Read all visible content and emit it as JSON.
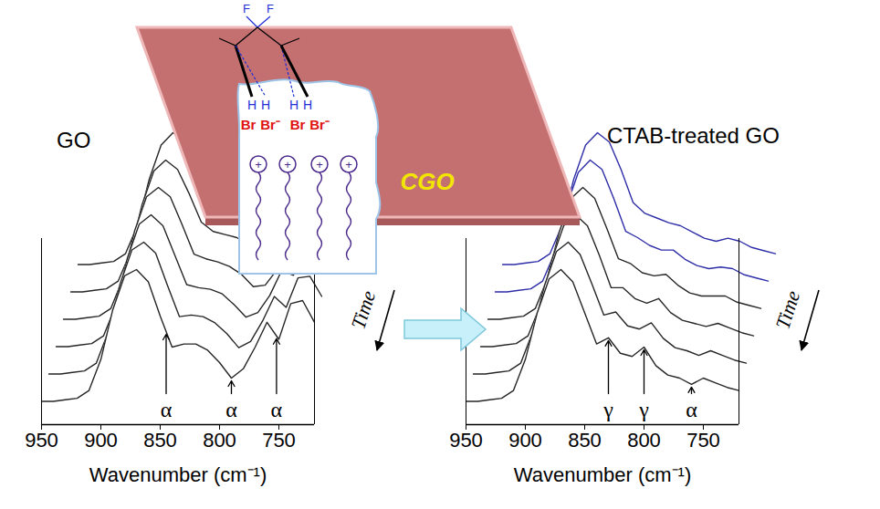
{
  "chart_data": [
    {
      "type": "waterfall",
      "title": "GO",
      "xlabel": "Wavenumber (cm⁻¹)",
      "zlabel": "Time",
      "x": [
        950,
        940,
        930,
        920,
        910,
        900,
        890,
        880,
        870,
        860,
        850,
        840,
        830,
        820,
        810,
        800,
        790,
        780,
        770,
        760,
        750,
        740,
        730,
        720
      ],
      "xlim": [
        950,
        720
      ],
      "xticks": [
        950,
        900,
        850,
        800,
        750
      ],
      "ylim": [
        0,
        1.2
      ],
      "tick_labels": "x",
      "series": [
        {
          "color": "#262626",
          "values": [
            0.15,
            0.15,
            0.16,
            0.17,
            0.22,
            0.4,
            0.7,
            0.92,
            1.0,
            0.95,
            0.8,
            0.62,
            0.55,
            0.52,
            0.5,
            0.46,
            0.4,
            0.38,
            0.45,
            0.6,
            0.7,
            0.75,
            0.72,
            0.6
          ]
        },
        {
          "color": "#262626",
          "values": [
            0.15,
            0.15,
            0.16,
            0.17,
            0.22,
            0.4,
            0.71,
            0.93,
            1.0,
            0.94,
            0.78,
            0.6,
            0.54,
            0.52,
            0.5,
            0.45,
            0.38,
            0.38,
            0.46,
            0.61,
            0.67,
            0.76,
            0.74,
            0.61
          ]
        },
        {
          "color": "#262626",
          "values": [
            0.15,
            0.15,
            0.16,
            0.17,
            0.22,
            0.41,
            0.72,
            0.94,
            1.0,
            0.94,
            0.76,
            0.57,
            0.54,
            0.52,
            0.49,
            0.44,
            0.36,
            0.37,
            0.47,
            0.62,
            0.64,
            0.76,
            0.75,
            0.62
          ]
        },
        {
          "color": "#262626",
          "values": [
            0.15,
            0.15,
            0.16,
            0.17,
            0.22,
            0.41,
            0.72,
            0.94,
            1.0,
            0.93,
            0.74,
            0.55,
            0.53,
            0.52,
            0.49,
            0.42,
            0.34,
            0.37,
            0.48,
            0.64,
            0.61,
            0.77,
            0.77,
            0.64
          ]
        },
        {
          "color": "#262626",
          "values": [
            0.15,
            0.15,
            0.16,
            0.17,
            0.22,
            0.42,
            0.73,
            0.95,
            1.0,
            0.93,
            0.72,
            0.52,
            0.53,
            0.52,
            0.48,
            0.41,
            0.32,
            0.36,
            0.49,
            0.65,
            0.58,
            0.77,
            0.78,
            0.65
          ]
        },
        {
          "color": "#262626",
          "values": [
            0.15,
            0.15,
            0.16,
            0.17,
            0.22,
            0.42,
            0.74,
            0.96,
            1.0,
            0.92,
            0.7,
            0.5,
            0.52,
            0.52,
            0.48,
            0.4,
            0.3,
            0.36,
            0.5,
            0.66,
            0.55,
            0.78,
            0.8,
            0.66
          ]
        }
      ],
      "annotations": [
        {
          "text": "α",
          "x": 845
        },
        {
          "text": "α",
          "x": 790
        },
        {
          "text": "α",
          "x": 752
        }
      ]
    },
    {
      "type": "waterfall",
      "title": "CTAB-treated GO",
      "xlabel": "Wavenumber (cm⁻¹)",
      "zlabel": "Time",
      "x": [
        950,
        940,
        930,
        920,
        910,
        900,
        890,
        880,
        870,
        860,
        850,
        840,
        830,
        820,
        810,
        800,
        790,
        780,
        770,
        760,
        750,
        740,
        730,
        720
      ],
      "xlim": [
        950,
        720
      ],
      "xticks": [
        950,
        900,
        850,
        800,
        750
      ],
      "ylim": [
        0,
        1.2
      ],
      "tick_labels": "x",
      "series": [
        {
          "color": "#2e2ea8",
          "values": [
            0.15,
            0.15,
            0.16,
            0.17,
            0.22,
            0.4,
            0.7,
            0.92,
            1.0,
            0.94,
            0.76,
            0.55,
            0.48,
            0.45,
            0.42,
            0.4,
            0.36,
            0.32,
            0.3,
            0.32,
            0.3,
            0.26,
            0.24,
            0.22
          ]
        },
        {
          "color": "#2e2ea8",
          "values": [
            0.15,
            0.15,
            0.16,
            0.17,
            0.22,
            0.4,
            0.7,
            0.92,
            1.0,
            0.94,
            0.75,
            0.54,
            0.5,
            0.45,
            0.42,
            0.42,
            0.36,
            0.32,
            0.3,
            0.31,
            0.3,
            0.26,
            0.24,
            0.22
          ]
        },
        {
          "color": "#262626",
          "values": [
            0.15,
            0.15,
            0.16,
            0.17,
            0.22,
            0.41,
            0.71,
            0.93,
            1.0,
            0.93,
            0.74,
            0.54,
            0.51,
            0.45,
            0.43,
            0.44,
            0.37,
            0.32,
            0.3,
            0.3,
            0.3,
            0.26,
            0.24,
            0.22
          ]
        },
        {
          "color": "#262626",
          "values": [
            0.15,
            0.15,
            0.16,
            0.17,
            0.22,
            0.41,
            0.71,
            0.93,
            1.0,
            0.93,
            0.74,
            0.53,
            0.53,
            0.46,
            0.43,
            0.46,
            0.37,
            0.32,
            0.3,
            0.28,
            0.3,
            0.27,
            0.24,
            0.22
          ]
        },
        {
          "color": "#262626",
          "values": [
            0.15,
            0.15,
            0.16,
            0.17,
            0.22,
            0.42,
            0.72,
            0.94,
            1.0,
            0.92,
            0.73,
            0.53,
            0.55,
            0.46,
            0.44,
            0.48,
            0.38,
            0.32,
            0.3,
            0.27,
            0.3,
            0.27,
            0.24,
            0.22
          ]
        },
        {
          "color": "#262626",
          "values": [
            0.15,
            0.15,
            0.16,
            0.17,
            0.22,
            0.42,
            0.72,
            0.94,
            1.0,
            0.92,
            0.72,
            0.52,
            0.56,
            0.46,
            0.44,
            0.5,
            0.38,
            0.32,
            0.3,
            0.26,
            0.3,
            0.27,
            0.24,
            0.22
          ]
        }
      ],
      "annotations": [
        {
          "text": "γ",
          "x": 830
        },
        {
          "text": "γ",
          "x": 800
        },
        {
          "text": "α",
          "x": 760
        }
      ]
    }
  ],
  "diagram": {
    "label": "CGO",
    "top_atoms": [
      "F",
      "F"
    ],
    "h_atoms": [
      "H",
      "H",
      "H",
      "H"
    ],
    "anions": [
      "Br",
      "Br⁻",
      "Br",
      "Br⁻"
    ],
    "head_charge": "+"
  }
}
